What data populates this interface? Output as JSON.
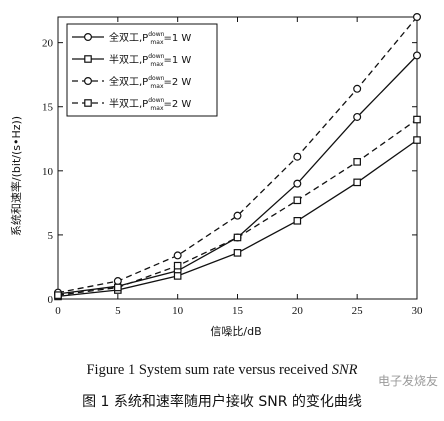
{
  "chart_data": {
    "type": "line",
    "xlabel": "信噪比/dB",
    "ylabel": "系统和速率/(bit/(s•Hz))",
    "xlim": [
      0,
      30
    ],
    "ylim": [
      0,
      22
    ],
    "xticks": [
      0,
      5,
      10,
      15,
      20,
      25,
      30
    ],
    "yticks": [
      0,
      5,
      10,
      15,
      20
    ],
    "grid": false,
    "legend_position": "top-left",
    "series": [
      {
        "name": "全双工,P_max^down=1 W",
        "legend_main": "全双工,P",
        "legend_sup": "down",
        "legend_sub": "max",
        "legend_tail": "=1 W",
        "style": "solid",
        "marker": "circle",
        "x": [
          0,
          5,
          10,
          15,
          20,
          25,
          30
        ],
        "y": [
          0.4,
          1.0,
          2.2,
          4.8,
          9.0,
          14.2,
          19.0
        ]
      },
      {
        "name": "半双工,P_max^down=1 W",
        "legend_main": "半双工,P",
        "legend_sup": "down",
        "legend_sub": "max",
        "legend_tail": "=1 W",
        "style": "solid",
        "marker": "square",
        "x": [
          0,
          5,
          10,
          15,
          20,
          25,
          30
        ],
        "y": [
          0.2,
          0.7,
          1.8,
          3.6,
          6.1,
          9.1,
          12.4
        ]
      },
      {
        "name": "全双工,P_max^down=2 W",
        "legend_main": "全双工,P",
        "legend_sup": "down",
        "legend_sub": "max",
        "legend_tail": "=2 W",
        "style": "dashed",
        "marker": "circle",
        "x": [
          0,
          5,
          10,
          15,
          20,
          25,
          30
        ],
        "y": [
          0.5,
          1.4,
          3.4,
          6.5,
          11.1,
          16.4,
          22.0
        ]
      },
      {
        "name": "半双工,P_max^down=2 W",
        "legend_main": "半双工,P",
        "legend_sup": "down",
        "legend_sub": "max",
        "legend_tail": "=2 W",
        "style": "dashed",
        "marker": "square",
        "x": [
          0,
          5,
          10,
          15,
          20,
          25,
          30
        ],
        "y": [
          0.3,
          0.9,
          2.6,
          4.8,
          7.7,
          10.7,
          14.0
        ]
      }
    ]
  },
  "caption_en": {
    "prefix": "Figure 1   System sum rate versus received ",
    "italic": "SNR"
  },
  "caption_zh": "图 1   系统和速率随用户接收 SNR 的变化曲线",
  "watermark": "电子发烧友"
}
